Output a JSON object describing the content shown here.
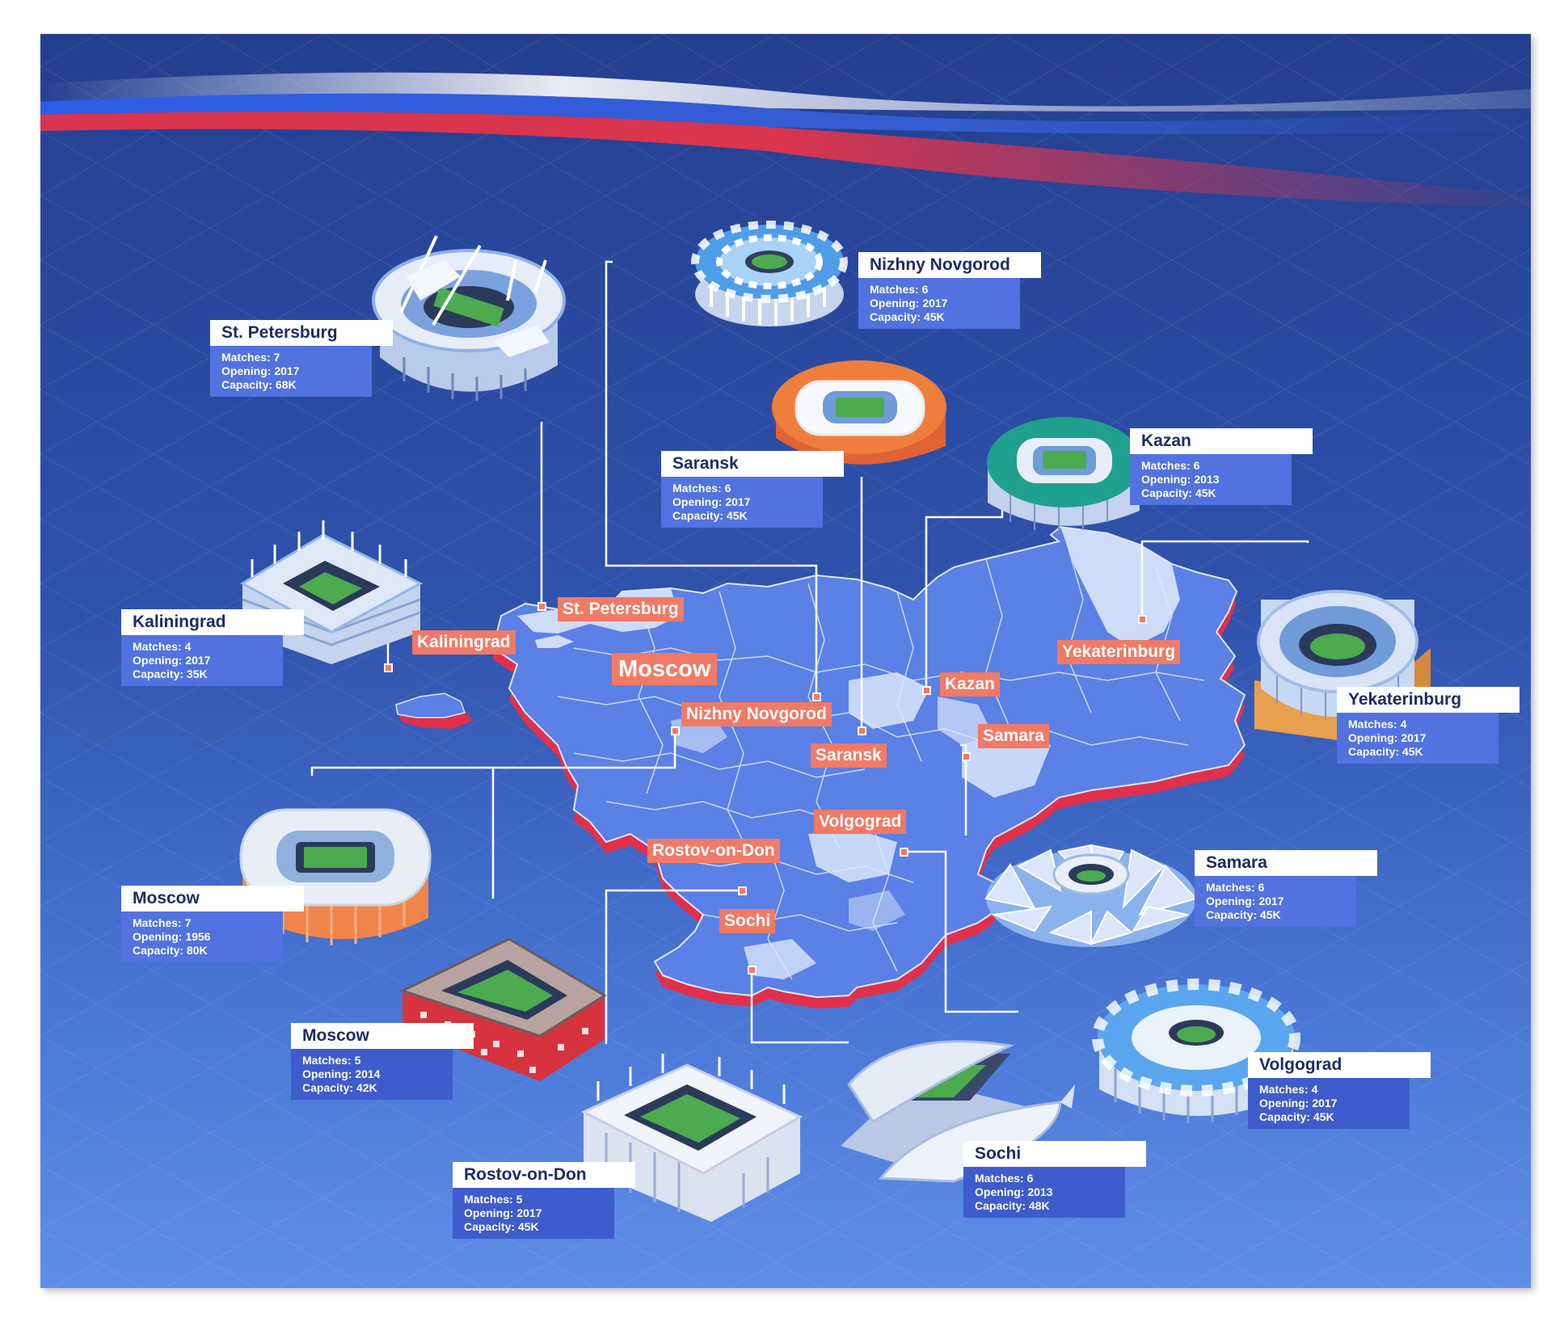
{
  "colors": {
    "map_land": "#5b80e6",
    "map_highlight": "#dbe6fb",
    "map_edge": "#e0304c",
    "label_bg": "#f07a66",
    "card_body": "#5272e0",
    "card_title_text": "#1d2c67"
  },
  "map_labels": {
    "st_petersburg": "St. Petersburg",
    "kaliningrad": "Kaliningrad",
    "moscow": "Moscow",
    "nizhny_novgorod": "Nizhny Novgorod",
    "saransk": "Saransk",
    "kazan": "Kazan",
    "yekaterinburg": "Yekaterinburg",
    "samara": "Samara",
    "volgograd": "Volgograd",
    "rostov_on_don": "Rostov-on-Don",
    "sochi": "Sochi"
  },
  "stadiums": {
    "nizhny_novgorod": {
      "title": "Nizhny Novgorod",
      "matches": "Matches: 6",
      "opening": "Opening: 2017",
      "capacity": "Capacity: 45K"
    },
    "st_petersburg": {
      "title": "St. Petersburg",
      "matches": "Matches: 7",
      "opening": "Opening: 2017",
      "capacity": "Capacity: 68K"
    },
    "saransk": {
      "title": "Saransk",
      "matches": "Matches: 6",
      "opening": "Opening: 2017",
      "capacity": "Capacity: 45K"
    },
    "kazan": {
      "title": "Kazan",
      "matches": "Matches: 6",
      "opening": "Opening: 2013",
      "capacity": "Capacity: 45K"
    },
    "kaliningrad": {
      "title": "Kaliningrad",
      "matches": "Matches: 4",
      "opening": "Opening: 2017",
      "capacity": "Capacity: 35K"
    },
    "yekaterinburg": {
      "title": "Yekaterinburg",
      "matches": "Matches: 4",
      "opening": "Opening: 2017",
      "capacity": "Capacity: 45K"
    },
    "samara": {
      "title": "Samara",
      "matches": "Matches: 6",
      "opening": "Opening: 2017",
      "capacity": "Capacity: 45K"
    },
    "moscow_luzhniki": {
      "title": "Moscow",
      "matches": "Matches: 7",
      "opening": "Opening: 1956",
      "capacity": "Capacity: 80K"
    },
    "moscow_spartak": {
      "title": "Moscow",
      "matches": "Matches: 5",
      "opening": "Opening: 2014",
      "capacity": "Capacity: 42K"
    },
    "volgograd": {
      "title": "Volgograd",
      "matches": "Matches: 4",
      "opening": "Opening: 2017",
      "capacity": "Capacity: 45K"
    },
    "sochi": {
      "title": "Sochi",
      "matches": "Matches: 6",
      "opening": "Opening: 2013",
      "capacity": "Capacity: 48K"
    },
    "rostov_on_don": {
      "title": "Rostov-on-Don",
      "matches": "Matches: 5",
      "opening": "Opening: 2017",
      "capacity": "Capacity: 45K"
    }
  }
}
